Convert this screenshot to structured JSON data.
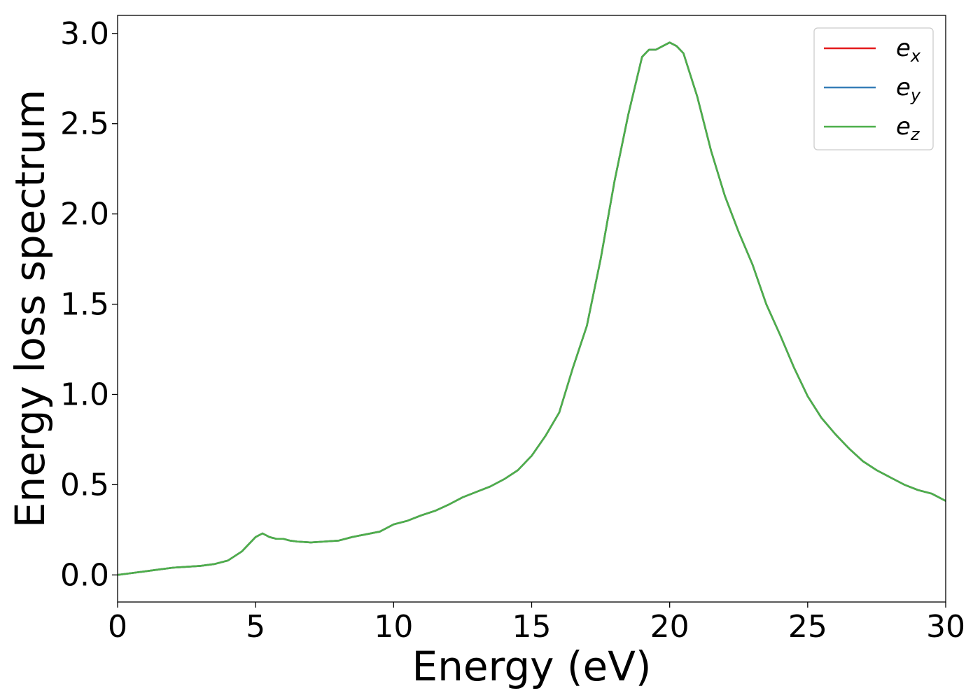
{
  "chart_data": {
    "type": "line",
    "title": "",
    "xlabel": "Energy (eV)",
    "ylabel": "Energy loss spectrum",
    "xlim": [
      0,
      30
    ],
    "ylim": [
      -0.15,
      3.1
    ],
    "xticks": [
      0,
      5,
      10,
      15,
      20,
      25,
      30
    ],
    "yticks": [
      0.0,
      0.5,
      1.0,
      1.5,
      2.0,
      2.5,
      3.0
    ],
    "xtick_labels": [
      "0",
      "5",
      "10",
      "15",
      "20",
      "25",
      "30"
    ],
    "ytick_labels": [
      "0.0",
      "0.5",
      "1.0",
      "1.5",
      "2.0",
      "2.5",
      "3.0"
    ],
    "grid": false,
    "legend_position": "top-right",
    "x": [
      0,
      0.5,
      1,
      1.5,
      2,
      2.5,
      3,
      3.5,
      4,
      4.5,
      5,
      5.25,
      5.5,
      5.75,
      6,
      6.25,
      6.5,
      7,
      7.5,
      8,
      8.5,
      9,
      9.5,
      10,
      10.5,
      11,
      11.5,
      12,
      12.5,
      13,
      13.5,
      14,
      14.5,
      15,
      15.5,
      16,
      16.5,
      17,
      17.5,
      18,
      18.5,
      19,
      19.25,
      19.5,
      19.75,
      20,
      20.25,
      20.5,
      21,
      21.5,
      22,
      22.5,
      23,
      23.5,
      24,
      24.5,
      25,
      25.5,
      26,
      26.5,
      27,
      27.5,
      28,
      28.5,
      29,
      29.5,
      30
    ],
    "series": [
      {
        "name": "e",
        "subscript": "x",
        "color": "#e41a1c",
        "values": [
          0.0,
          0.01,
          0.02,
          0.03,
          0.04,
          0.045,
          0.05,
          0.06,
          0.08,
          0.13,
          0.21,
          0.23,
          0.21,
          0.2,
          0.2,
          0.19,
          0.185,
          0.18,
          0.185,
          0.19,
          0.21,
          0.225,
          0.24,
          0.28,
          0.3,
          0.33,
          0.355,
          0.39,
          0.43,
          0.46,
          0.49,
          0.53,
          0.58,
          0.66,
          0.77,
          0.9,
          1.15,
          1.38,
          1.75,
          2.18,
          2.55,
          2.87,
          2.91,
          2.91,
          2.93,
          2.95,
          2.93,
          2.89,
          2.65,
          2.35,
          2.1,
          1.9,
          1.72,
          1.5,
          1.33,
          1.15,
          0.99,
          0.87,
          0.78,
          0.7,
          0.63,
          0.58,
          0.54,
          0.5,
          0.47,
          0.45,
          0.41
        ]
      },
      {
        "name": "e",
        "subscript": "y",
        "color": "#377eb8",
        "values": [
          0.0,
          0.01,
          0.02,
          0.03,
          0.04,
          0.045,
          0.05,
          0.06,
          0.08,
          0.13,
          0.21,
          0.23,
          0.21,
          0.2,
          0.2,
          0.19,
          0.185,
          0.18,
          0.185,
          0.19,
          0.21,
          0.225,
          0.24,
          0.28,
          0.3,
          0.33,
          0.355,
          0.39,
          0.43,
          0.46,
          0.49,
          0.53,
          0.58,
          0.66,
          0.77,
          0.9,
          1.15,
          1.38,
          1.75,
          2.18,
          2.55,
          2.87,
          2.91,
          2.91,
          2.93,
          2.95,
          2.93,
          2.89,
          2.65,
          2.35,
          2.1,
          1.9,
          1.72,
          1.5,
          1.33,
          1.15,
          0.99,
          0.87,
          0.78,
          0.7,
          0.63,
          0.58,
          0.54,
          0.5,
          0.47,
          0.45,
          0.41
        ]
      },
      {
        "name": "e",
        "subscript": "z",
        "color": "#4daf4a",
        "values": [
          0.0,
          0.01,
          0.02,
          0.03,
          0.04,
          0.045,
          0.05,
          0.06,
          0.08,
          0.13,
          0.21,
          0.23,
          0.21,
          0.2,
          0.2,
          0.19,
          0.185,
          0.18,
          0.185,
          0.19,
          0.21,
          0.225,
          0.24,
          0.28,
          0.3,
          0.33,
          0.355,
          0.39,
          0.43,
          0.46,
          0.49,
          0.53,
          0.58,
          0.66,
          0.77,
          0.9,
          1.15,
          1.38,
          1.75,
          2.18,
          2.55,
          2.87,
          2.91,
          2.91,
          2.93,
          2.95,
          2.93,
          2.89,
          2.65,
          2.35,
          2.1,
          1.9,
          1.72,
          1.5,
          1.33,
          1.15,
          0.99,
          0.87,
          0.78,
          0.7,
          0.63,
          0.58,
          0.54,
          0.5,
          0.47,
          0.45,
          0.41
        ]
      }
    ]
  }
}
